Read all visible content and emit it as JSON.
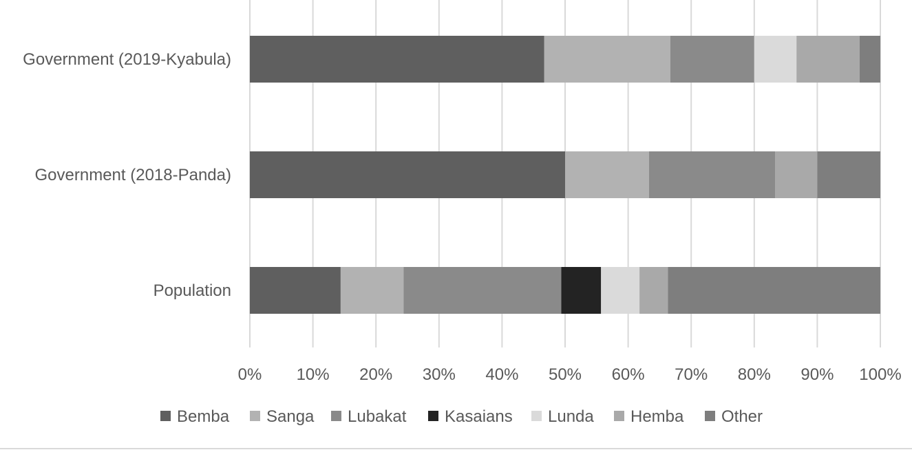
{
  "chart_data": {
    "type": "bar",
    "orientation": "horizontal",
    "stacked": "percent",
    "categories": [
      "Government (2019-Kyabula)",
      "Government (2018-Panda)",
      "Population"
    ],
    "x_ticks": [
      "0%",
      "10%",
      "20%",
      "30%",
      "40%",
      "50%",
      "60%",
      "70%",
      "80%",
      "90%",
      "100%"
    ],
    "xlim": [
      0,
      100
    ],
    "grid": true,
    "legend_position": "bottom",
    "series": [
      {
        "name": "Bemba",
        "color": "#5f5f5f",
        "values": [
          46.7,
          50.0,
          14.4
        ]
      },
      {
        "name": "Sanga",
        "color": "#b2b2b2",
        "values": [
          20.0,
          13.3,
          10.0
        ]
      },
      {
        "name": "Lubakat",
        "color": "#8a8a8a",
        "values": [
          13.3,
          20.0,
          25.0
        ]
      },
      {
        "name": "Kasaians",
        "color": "#232323",
        "values": [
          0.0,
          0.0,
          6.3
        ]
      },
      {
        "name": "Lunda",
        "color": "#dadada",
        "values": [
          6.7,
          0.0,
          6.1
        ]
      },
      {
        "name": "Hemba",
        "color": "#a9a9a9",
        "values": [
          10.0,
          6.7,
          4.5
        ]
      },
      {
        "name": "Other",
        "color": "#7e7e7e",
        "values": [
          3.3,
          10.0,
          33.7
        ]
      }
    ]
  }
}
